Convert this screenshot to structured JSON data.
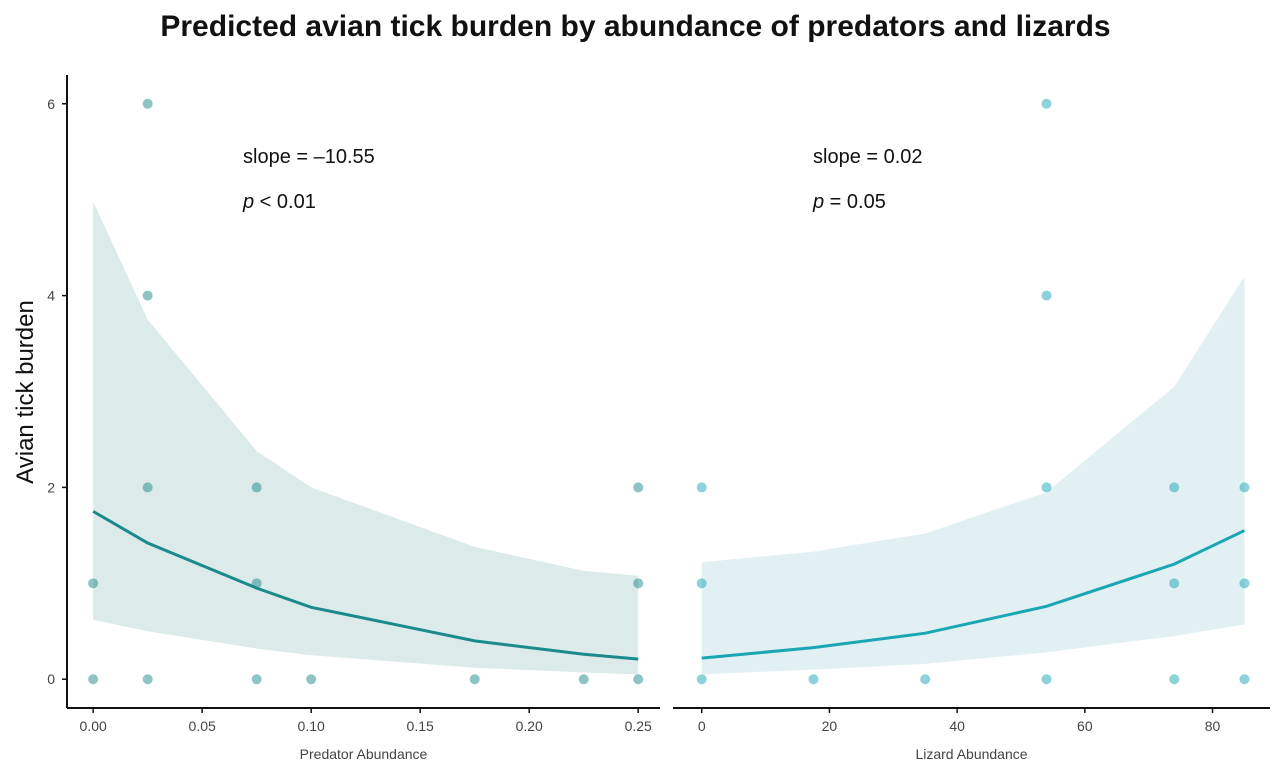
{
  "title": "Predicted avian tick burden by abundance of predators and lizards",
  "ylabel": "Avian tick burden",
  "chart_data": [
    {
      "type": "scatter",
      "panel": "left",
      "xlabel": "Predator Abundance",
      "ylabel": "Avian tick burden",
      "xlim": [
        -0.012,
        0.26
      ],
      "ylim": [
        -0.3,
        6.3
      ],
      "xticks": [
        0.0,
        0.05,
        0.1,
        0.15,
        0.2,
        0.25
      ],
      "xtick_labels": [
        "0.00",
        "0.05",
        "0.10",
        "0.15",
        "0.20",
        "0.25"
      ],
      "yticks": [
        0,
        2,
        4,
        6
      ],
      "ytick_labels": [
        "0",
        "2",
        "4",
        "6"
      ],
      "color": "#1b8a8a",
      "ribbon_color": "#dcebea",
      "points": [
        {
          "x": 0.0,
          "y": 0
        },
        {
          "x": 0.0,
          "y": 1
        },
        {
          "x": 0.025,
          "y": 0
        },
        {
          "x": 0.025,
          "y": 2
        },
        {
          "x": 0.025,
          "y": 4
        },
        {
          "x": 0.025,
          "y": 6
        },
        {
          "x": 0.075,
          "y": 0
        },
        {
          "x": 0.075,
          "y": 1
        },
        {
          "x": 0.075,
          "y": 2
        },
        {
          "x": 0.1,
          "y": 0
        },
        {
          "x": 0.175,
          "y": 0
        },
        {
          "x": 0.225,
          "y": 0
        },
        {
          "x": 0.25,
          "y": 0
        },
        {
          "x": 0.25,
          "y": 1
        },
        {
          "x": 0.25,
          "y": 2
        }
      ],
      "fit": {
        "x": [
          0.0,
          0.025,
          0.075,
          0.1,
          0.175,
          0.225,
          0.25
        ],
        "y": [
          1.75,
          1.42,
          0.95,
          0.75,
          0.4,
          0.26,
          0.21
        ],
        "lower": [
          0.62,
          0.5,
          0.32,
          0.25,
          0.12,
          0.07,
          0.05
        ],
        "upper": [
          4.98,
          3.75,
          2.38,
          2.0,
          1.38,
          1.13,
          1.08
        ]
      },
      "annotations": {
        "slope": "slope = –10.55",
        "p_label": "p",
        "p_value": " < 0.01"
      }
    },
    {
      "type": "scatter",
      "panel": "right",
      "xlabel": "Lizard Abundance",
      "ylabel": "",
      "xlim": [
        -4.5,
        89
      ],
      "ylim": [
        -0.3,
        6.3
      ],
      "xticks": [
        0,
        20,
        40,
        60,
        80
      ],
      "xtick_labels": [
        "0",
        "20",
        "40",
        "60",
        "80"
      ],
      "yticks": [
        0,
        2,
        4,
        6
      ],
      "ytick_labels": [
        "0",
        "2",
        "4",
        "6"
      ],
      "color": "#1aa6b3",
      "ribbon_color": "#e3f0f3",
      "points": [
        {
          "x": 0,
          "y": 0
        },
        {
          "x": 0,
          "y": 1
        },
        {
          "x": 0,
          "y": 2
        },
        {
          "x": 17.5,
          "y": 0
        },
        {
          "x": 35,
          "y": 0
        },
        {
          "x": 54,
          "y": 0
        },
        {
          "x": 54,
          "y": 2
        },
        {
          "x": 54,
          "y": 4
        },
        {
          "x": 54,
          "y": 6
        },
        {
          "x": 74,
          "y": 0
        },
        {
          "x": 74,
          "y": 1
        },
        {
          "x": 74,
          "y": 2
        },
        {
          "x": 85,
          "y": 0
        },
        {
          "x": 85,
          "y": 1
        },
        {
          "x": 85,
          "y": 2
        }
      ],
      "fit": {
        "x": [
          0,
          17.5,
          35,
          54,
          74,
          85
        ],
        "y": [
          0.22,
          0.33,
          0.48,
          0.76,
          1.2,
          1.55
        ],
        "lower": [
          0.05,
          0.1,
          0.16,
          0.28,
          0.45,
          0.57
        ],
        "upper": [
          1.22,
          1.33,
          1.52,
          1.95,
          3.05,
          4.2
        ]
      },
      "annotations": {
        "slope": "slope = 0.02",
        "p_label": "p",
        "p_value": " = 0.05"
      }
    }
  ]
}
